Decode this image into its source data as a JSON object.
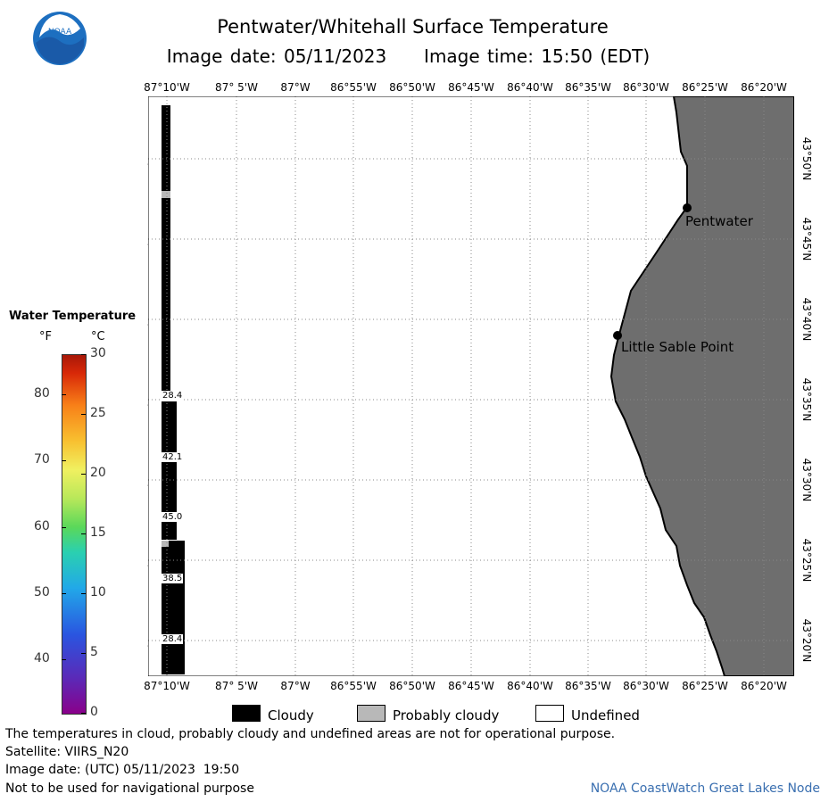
{
  "header": {
    "title": "Pentwater/Whitehall Surface Temperature",
    "subtitle": "Image date: 05/11/2023     Image time: 15:50 (EDT)"
  },
  "logo": {
    "text": "NOAA"
  },
  "map": {
    "lon_labels": [
      "87°10'W",
      "87° 5'W",
      "87°W",
      "86°55'W",
      "86°50'W",
      "86°45'W",
      "86°40'W",
      "86°35'W",
      "86°30'W",
      "86°25'W",
      "86°20'W"
    ],
    "lat_labels": [
      "43°50'N",
      "43°45'N",
      "43°40'N",
      "43°35'N",
      "43°30'N",
      "43°25'N",
      "43°20'N"
    ],
    "places": [
      {
        "name": "Pentwater"
      },
      {
        "name": "Little Sable Point"
      }
    ],
    "temp_values": [
      "28.4",
      "42.1",
      "45.0",
      "38.5",
      "28.4"
    ],
    "colors": {
      "land": "#6e6e6e",
      "cloud": "#000000",
      "probably_cloudy": "#b8b8b8",
      "grid": "#888888"
    }
  },
  "colorbar": {
    "title": "Water Temperature",
    "unit_f": "°F",
    "unit_c": "°C",
    "f_ticks": [
      "80",
      "70",
      "60",
      "50",
      "40"
    ],
    "c_ticks": [
      "30",
      "25",
      "20",
      "15",
      "10",
      "5",
      "0"
    ]
  },
  "legend": {
    "cloudy": "Cloudy",
    "probably_cloudy": "Probably cloudy",
    "undefined": "Undefined"
  },
  "footer": {
    "line1": "The temperatures in cloud, probably cloudy and undefined areas are not for operational purpose.",
    "line2": "Satellite: VIIRS_N20",
    "line3": "Image date: (UTC) 05/11/2023  19:50",
    "line4": "Not to be used for navigational purpose",
    "credit": "NOAA CoastWatch Great Lakes Node"
  }
}
